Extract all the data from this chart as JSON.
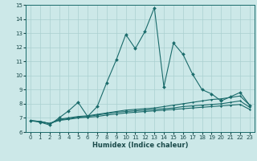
{
  "xlabel": "Humidex (Indice chaleur)",
  "xlim": [
    -0.5,
    23.5
  ],
  "ylim": [
    6,
    15
  ],
  "yticks": [
    6,
    7,
    8,
    9,
    10,
    11,
    12,
    13,
    14,
    15
  ],
  "xticks": [
    0,
    1,
    2,
    3,
    4,
    5,
    6,
    7,
    8,
    9,
    10,
    11,
    12,
    13,
    14,
    15,
    16,
    17,
    18,
    19,
    20,
    21,
    22,
    23
  ],
  "bg_color": "#cce8e8",
  "grid_color": "#aad0d0",
  "line_color": "#1a6b6b",
  "line1_x": [
    0,
    1,
    2,
    3,
    4,
    5,
    6,
    7,
    8,
    9,
    10,
    11,
    12,
    13,
    14,
    15,
    16,
    17,
    18,
    19,
    20,
    21,
    22,
    23
  ],
  "line1_y": [
    6.8,
    6.7,
    6.5,
    7.0,
    7.5,
    8.1,
    7.1,
    7.8,
    9.5,
    11.1,
    12.9,
    11.9,
    13.1,
    14.8,
    9.2,
    12.3,
    11.5,
    10.1,
    9.0,
    8.7,
    8.2,
    8.5,
    8.8,
    7.9
  ],
  "line2_x": [
    0,
    1,
    2,
    3,
    4,
    5,
    6,
    7,
    8,
    9,
    10,
    11,
    12,
    13,
    14,
    15,
    16,
    17,
    18,
    19,
    20,
    21,
    22,
    23
  ],
  "line2_y": [
    6.8,
    6.75,
    6.6,
    6.9,
    7.0,
    7.1,
    7.15,
    7.25,
    7.35,
    7.45,
    7.55,
    7.6,
    7.65,
    7.7,
    7.8,
    7.9,
    8.0,
    8.1,
    8.2,
    8.3,
    8.35,
    8.45,
    8.55,
    7.9
  ],
  "line3_x": [
    0,
    1,
    2,
    3,
    4,
    5,
    6,
    7,
    8,
    9,
    10,
    11,
    12,
    13,
    14,
    15,
    16,
    17,
    18,
    19,
    20,
    21,
    22,
    23
  ],
  "line3_y": [
    6.8,
    6.75,
    6.6,
    6.85,
    6.95,
    7.05,
    7.1,
    7.2,
    7.3,
    7.4,
    7.45,
    7.5,
    7.55,
    7.6,
    7.65,
    7.7,
    7.8,
    7.85,
    7.9,
    7.95,
    8.0,
    8.1,
    8.2,
    7.75
  ],
  "line4_x": [
    0,
    1,
    2,
    3,
    4,
    5,
    6,
    7,
    8,
    9,
    10,
    11,
    12,
    13,
    14,
    15,
    16,
    17,
    18,
    19,
    20,
    21,
    22,
    23
  ],
  "line4_y": [
    6.8,
    6.75,
    6.6,
    6.82,
    6.9,
    7.0,
    7.05,
    7.1,
    7.2,
    7.28,
    7.35,
    7.4,
    7.45,
    7.5,
    7.55,
    7.6,
    7.65,
    7.7,
    7.75,
    7.8,
    7.85,
    7.9,
    7.95,
    7.6
  ]
}
